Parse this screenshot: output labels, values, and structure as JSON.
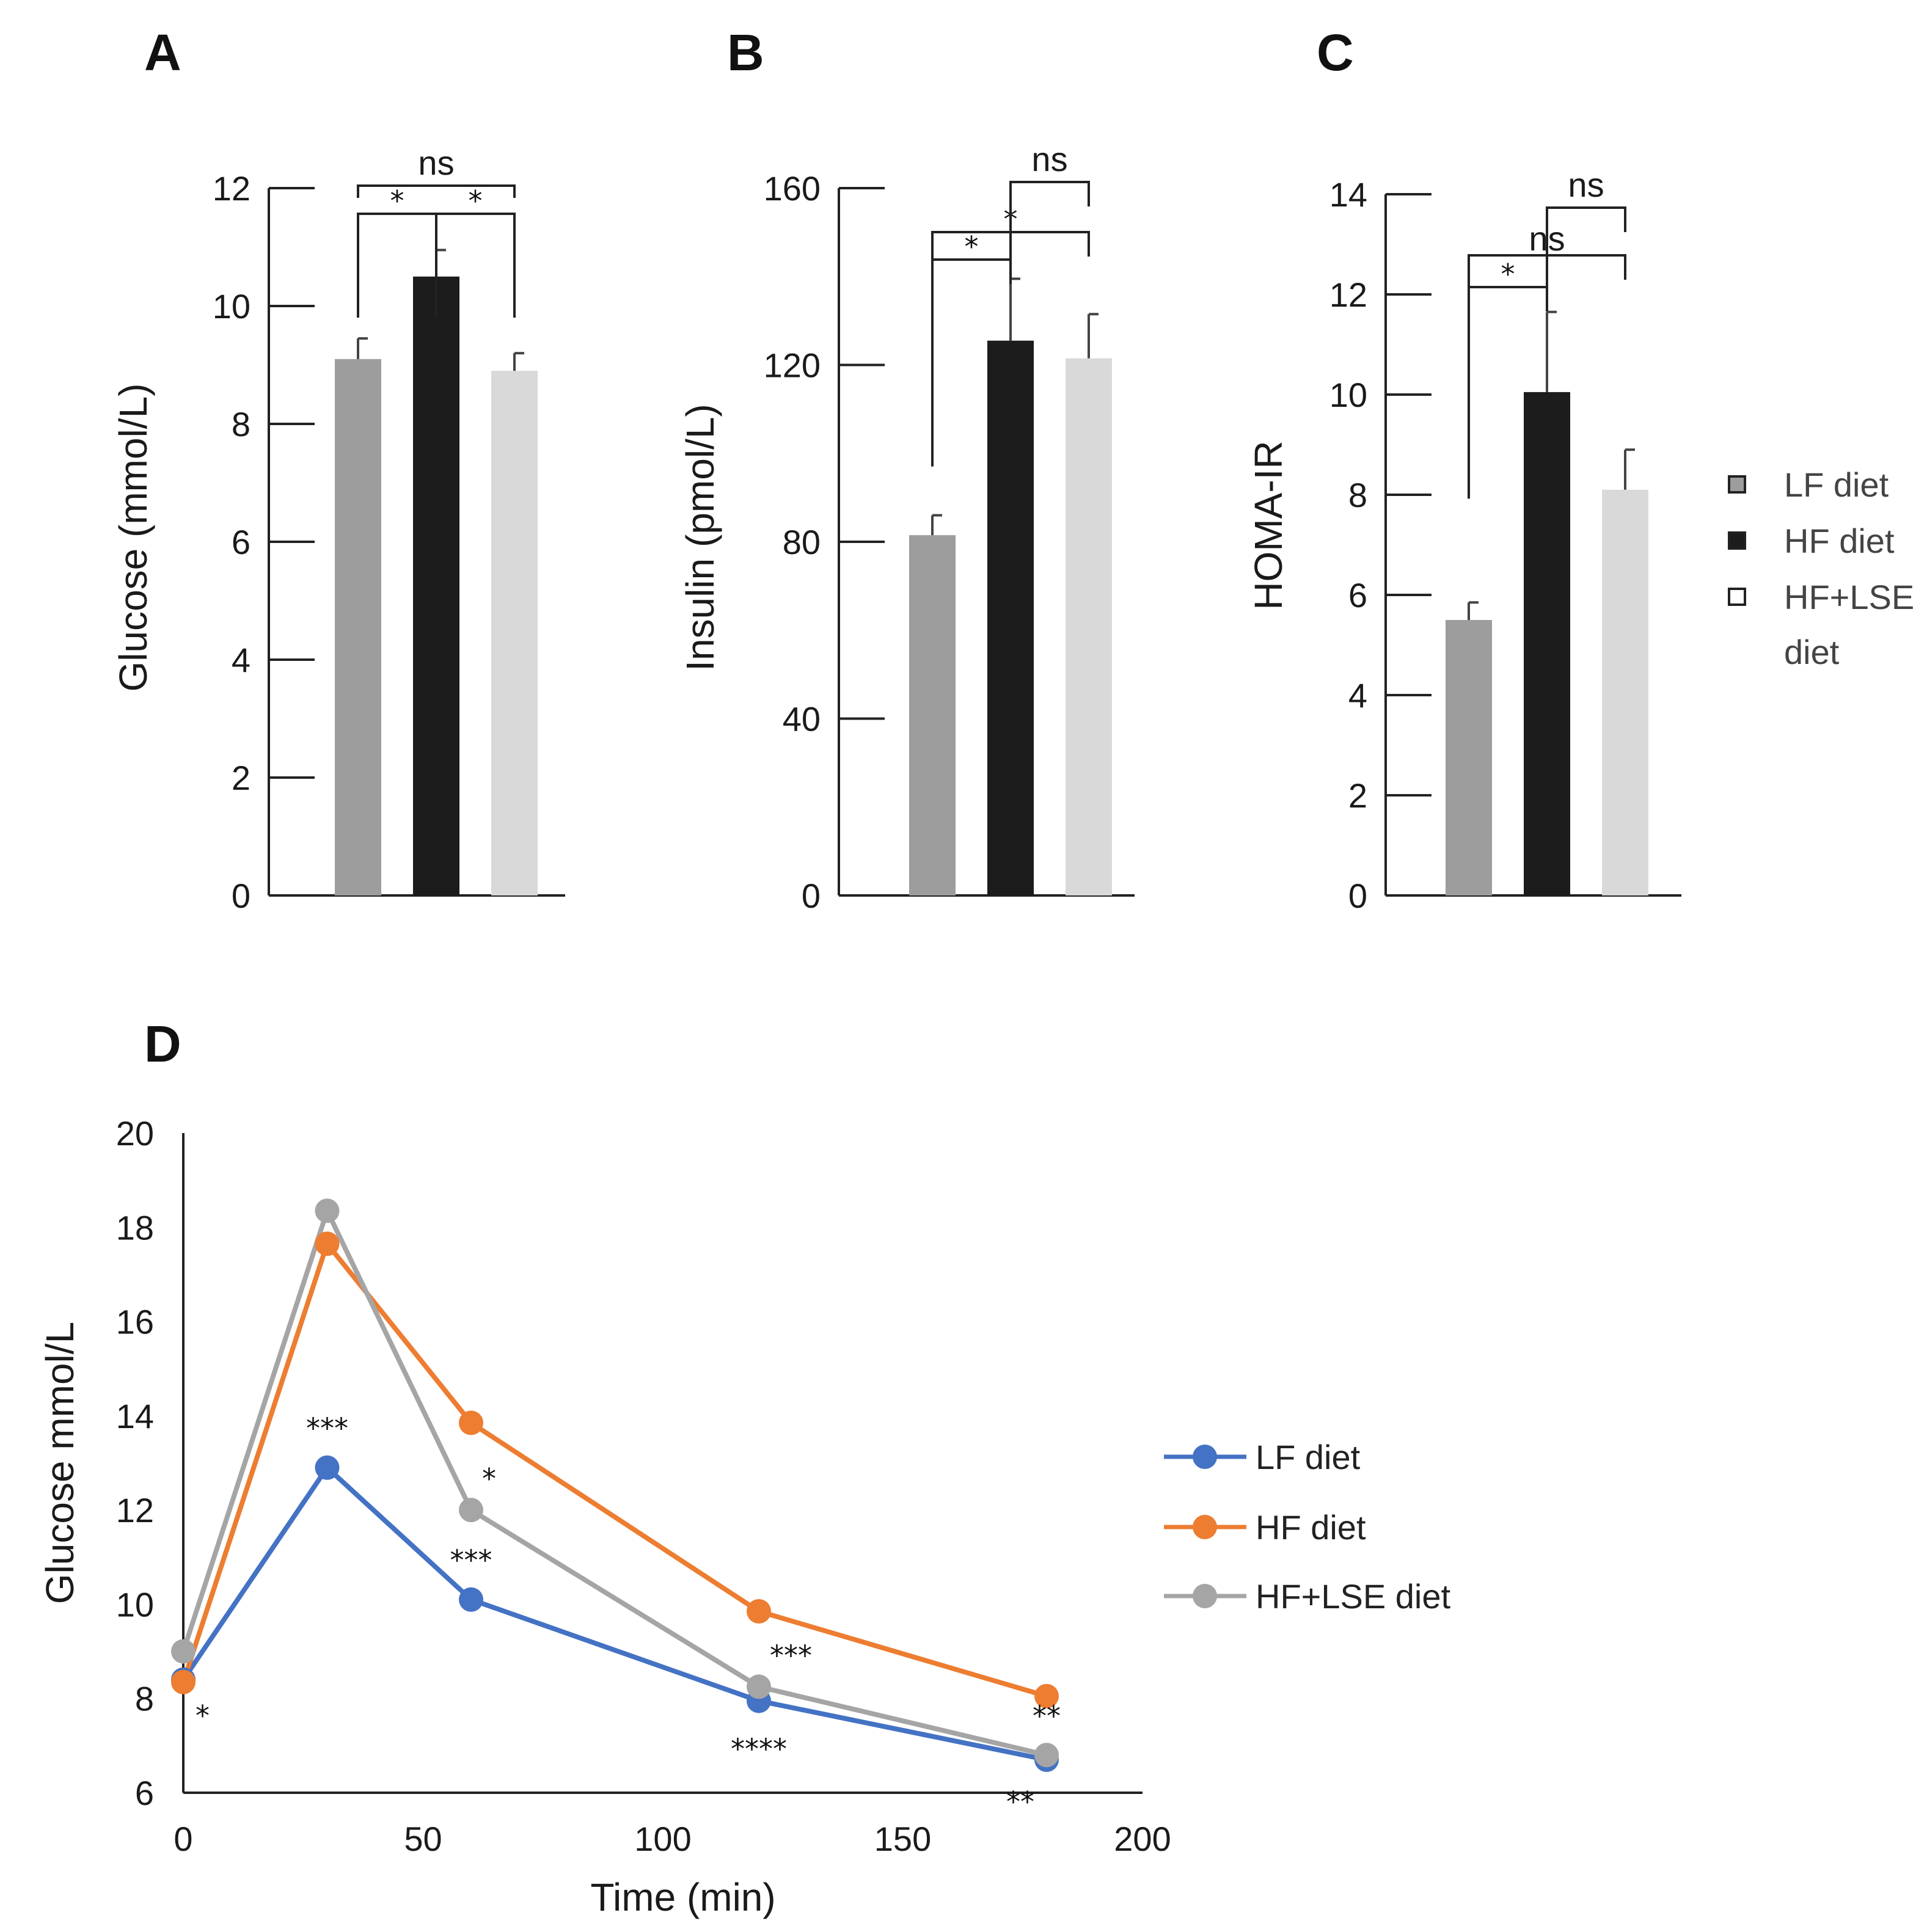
{
  "chart_data": [
    {
      "panel": "A",
      "type": "bar",
      "categories": [
        "LF diet",
        "HF diet",
        "HF+LSE diet"
      ],
      "values": [
        9.1,
        10.5,
        8.9
      ],
      "errors": [
        0.35,
        0.45,
        0.3
      ],
      "colors": [
        "#9d9d9d",
        "#1c1c1c",
        "#d9d9d9"
      ],
      "ylabel": "Glucose (mmol/L)",
      "ylim": [
        0,
        12
      ],
      "yticks": [
        "0",
        "2",
        "4",
        "6",
        "8",
        "10",
        "12"
      ],
      "significance": [
        {
          "from": 0,
          "to": 1,
          "label": "*"
        },
        {
          "from": 1,
          "to": 2,
          "label": "*"
        },
        {
          "from": 0,
          "to": 2,
          "label": "ns"
        }
      ]
    },
    {
      "panel": "B",
      "type": "bar",
      "categories": [
        "LF diet",
        "HF diet",
        "HF+LSE diet"
      ],
      "values": [
        81.5,
        125.5,
        121.5
      ],
      "errors": [
        4.5,
        14,
        10
      ],
      "colors": [
        "#9d9d9d",
        "#1c1c1c",
        "#d9d9d9"
      ],
      "ylabel": "Insulin (pmol/L)",
      "ylim": [
        0,
        160
      ],
      "yticks": [
        "0",
        "40",
        "80",
        "120",
        "160"
      ],
      "significance": [
        {
          "from": 0,
          "to": 1,
          "label": "*"
        },
        {
          "from": 0,
          "to": 2,
          "label": "*"
        },
        {
          "from": 1,
          "to": 2,
          "label": "ns"
        }
      ]
    },
    {
      "panel": "C",
      "type": "bar",
      "categories": [
        "LF diet",
        "HF diet",
        "HF+LSE diet"
      ],
      "values": [
        5.5,
        10.05,
        8.1
      ],
      "errors": [
        0.35,
        1.6,
        0.8
      ],
      "colors": [
        "#9d9d9d",
        "#1c1c1c",
        "#d9d9d9"
      ],
      "ylabel": "HOMA-IR",
      "ylim": [
        0,
        14
      ],
      "yticks": [
        "0",
        "2",
        "4",
        "6",
        "8",
        "10",
        "12",
        "14"
      ],
      "significance": [
        {
          "from": 0,
          "to": 1,
          "label": "*"
        },
        {
          "from": 0,
          "to": 2,
          "label": "ns"
        },
        {
          "from": 1,
          "to": 2,
          "label": "ns"
        }
      ]
    },
    {
      "panel": "D",
      "type": "line",
      "x": [
        0,
        30,
        60,
        120,
        180
      ],
      "series": [
        {
          "name": "LF diet",
          "color": "#4472c4",
          "values": [
            8.4,
            12.9,
            10.1,
            7.95,
            6.7
          ]
        },
        {
          "name": "HF diet",
          "color": "#ed7d31",
          "values": [
            8.35,
            17.65,
            13.85,
            9.85,
            8.05
          ]
        },
        {
          "name": "HF+LSE diet",
          "color": "#a5a5a5",
          "values": [
            9.0,
            18.35,
            12.0,
            8.25,
            6.8
          ]
        }
      ],
      "xlabel": "Time (min)",
      "ylabel": "Glucose mmol/L",
      "xlim": [
        0,
        200
      ],
      "ylim": [
        6,
        20
      ],
      "xticks": [
        "0",
        "50",
        "100",
        "150",
        "200"
      ],
      "yticks": [
        "6",
        "8",
        "10",
        "12",
        "14",
        "16",
        "18",
        "20"
      ],
      "annotations": [
        {
          "x": 0,
          "y": 8.4,
          "label": "*",
          "pos": "below-right"
        },
        {
          "x": 30,
          "y": 12.9,
          "label": "***",
          "pos": "above"
        },
        {
          "x": 60,
          "y": 12.0,
          "label": "*",
          "pos": "above-right"
        },
        {
          "x": 60,
          "y": 10.1,
          "label": "***",
          "pos": "above"
        },
        {
          "x": 120,
          "y": 8.25,
          "label": "***",
          "pos": "above-right"
        },
        {
          "x": 120,
          "y": 7.95,
          "label": "****",
          "pos": "below"
        },
        {
          "x": 180,
          "y": 6.8,
          "label": "**",
          "pos": "above"
        },
        {
          "x": 180,
          "y": 6.7,
          "label": "**",
          "pos": "below-left"
        }
      ]
    }
  ],
  "legend_bars": [
    "LF diet",
    "HF diet",
    "HF+LSE",
    "diet"
  ],
  "legend_lines": [
    "LF diet",
    "HF diet",
    "HF+LSE diet"
  ],
  "legend_colors": {
    "lf": "#9d9d9d",
    "hf": "#1c1c1c",
    "lse": "#ffffff"
  }
}
